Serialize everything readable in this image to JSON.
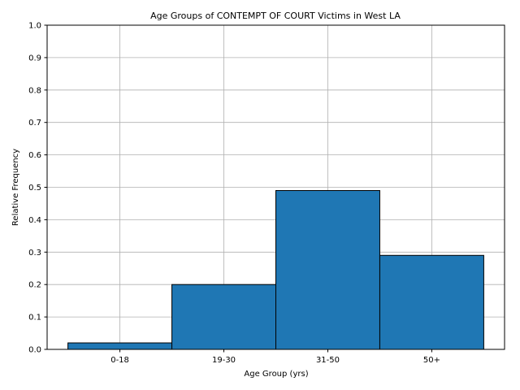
{
  "chart_data": {
    "type": "bar",
    "title": "Age Groups of CONTEMPT OF COURT Victims in West LA",
    "xlabel": "Age Group (yrs)",
    "ylabel": "Relative Frequency",
    "categories": [
      "0-18",
      "19-30",
      "31-50",
      "50+"
    ],
    "values": [
      0.02,
      0.2,
      0.49,
      0.29
    ],
    "ylim": [
      0,
      1.0
    ],
    "yticks": [
      "0.0",
      "0.1",
      "0.2",
      "0.3",
      "0.4",
      "0.5",
      "0.6",
      "0.7",
      "0.8",
      "0.9",
      "1.0"
    ],
    "grid": true,
    "bar_color": "#1f77b4",
    "edge_color": "#000000"
  }
}
